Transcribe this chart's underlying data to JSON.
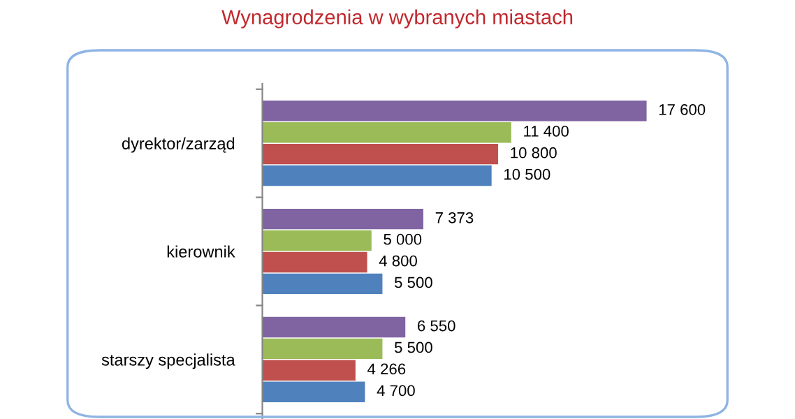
{
  "chart_data": {
    "type": "bar",
    "orientation": "horizontal",
    "title": "Wynagrodzenia w wybranych miastach",
    "categories": [
      "dyrektor/zarząd",
      "kierownik",
      "starszy specjalista"
    ],
    "series": [
      {
        "color": "#4f81bd",
        "values": [
          10500,
          5500,
          4700
        ],
        "value_labels": [
          "10 500",
          "5 500",
          "4 700"
        ]
      },
      {
        "color": "#c0504d",
        "values": [
          10800,
          4800,
          4266
        ],
        "value_labels": [
          "10 800",
          "4 800",
          "4 266"
        ]
      },
      {
        "color": "#9bbb59",
        "values": [
          11400,
          5000,
          5500
        ],
        "value_labels": [
          "11 400",
          "5 000",
          "5 500"
        ]
      },
      {
        "color": "#8064a2",
        "values": [
          17600,
          7373,
          6550
        ],
        "value_labels": [
          "17 600",
          "7 373",
          "6 550"
        ]
      }
    ],
    "grid": false,
    "legend": false
  }
}
